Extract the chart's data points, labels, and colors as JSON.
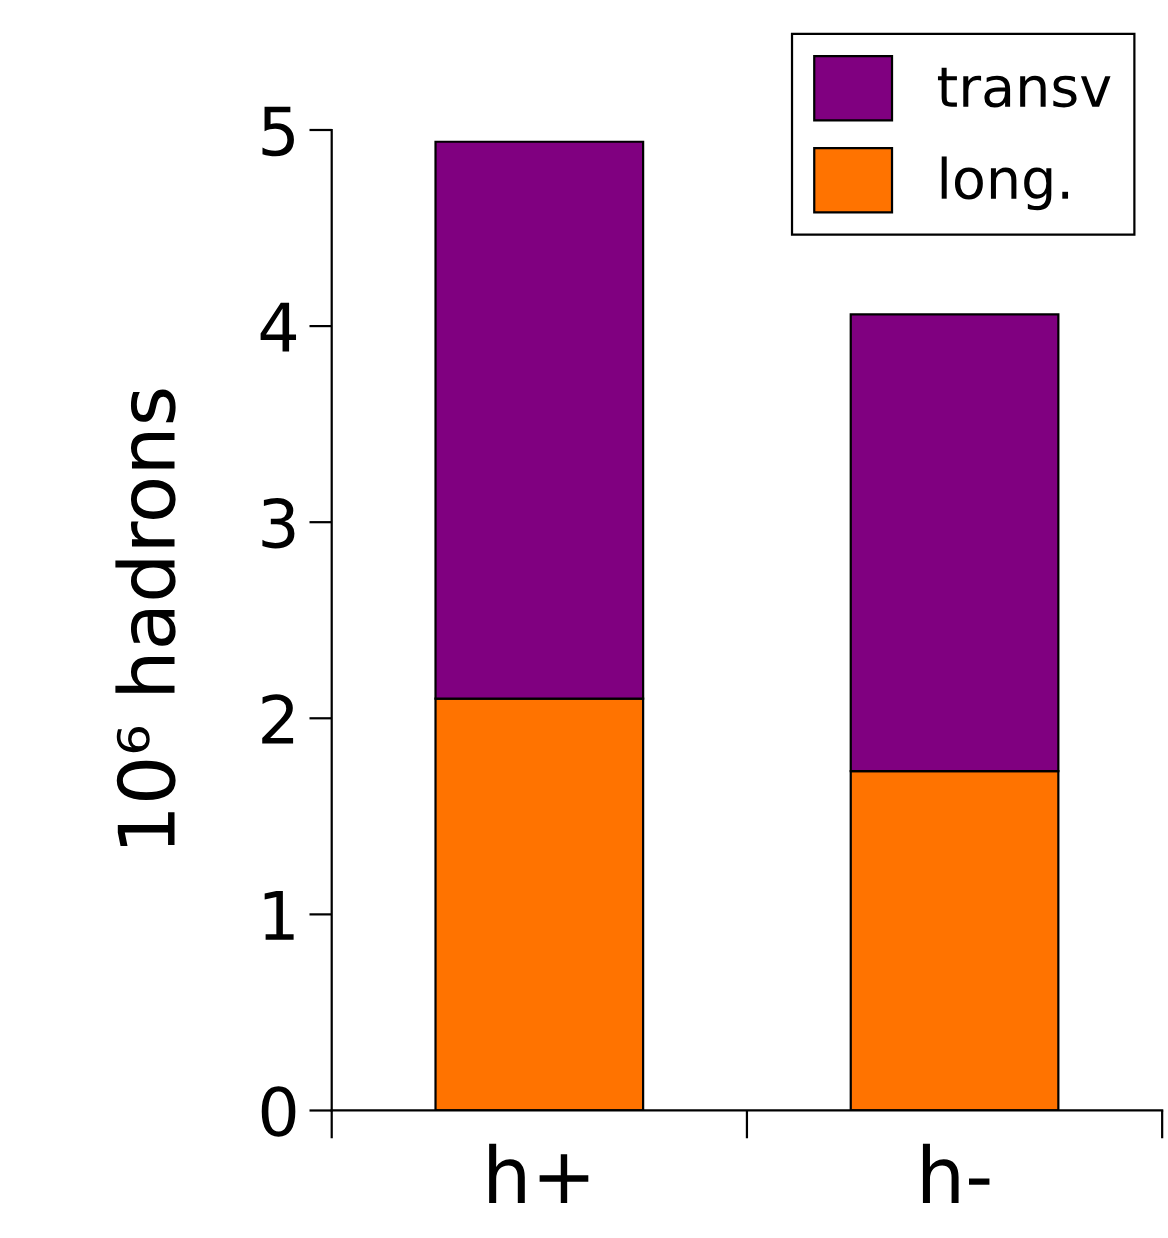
{
  "chart_data": {
    "type": "bar",
    "stacked": true,
    "ylabel": "10⁶ hadrons",
    "categories": [
      "h+",
      "h-"
    ],
    "series": [
      {
        "name": "long.",
        "color": "#ff7300",
        "values": [
          2.1,
          1.73
        ]
      },
      {
        "name": "transv",
        "color": "#800080",
        "values": [
          2.84,
          2.33
        ]
      }
    ],
    "ylim": [
      0,
      5
    ],
    "yticks": [
      0,
      1,
      2,
      3,
      4,
      5
    ],
    "grid": false,
    "legend": "top right"
  }
}
